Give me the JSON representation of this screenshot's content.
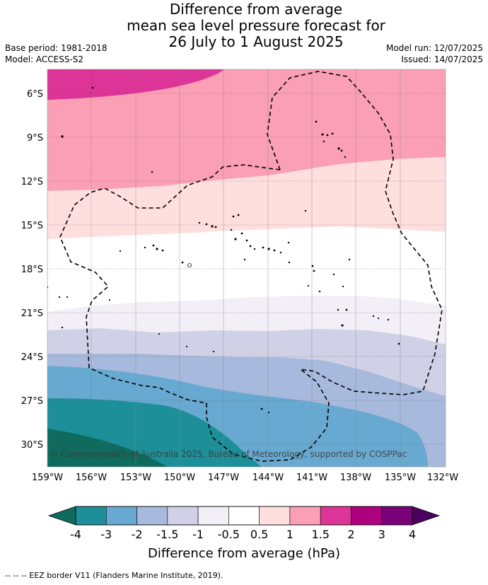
{
  "title": {
    "line1": "Difference from average",
    "line2": "mean sea level pressure forecast for",
    "line3": "26 July to 1 August 2025"
  },
  "meta_left": {
    "base_period": "Base period: 1981-2018",
    "model": "Model: ACCESS-S2"
  },
  "meta_right": {
    "model_run": "Model run: 12/07/2025",
    "issued": "Issued: 14/07/2025"
  },
  "map": {
    "lat_labels": [
      "6°S",
      "9°S",
      "12°S",
      "15°S",
      "18°S",
      "21°S",
      "24°S",
      "27°S",
      "30°S"
    ],
    "lon_labels": [
      "159°W",
      "156°W",
      "153°W",
      "150°W",
      "147°W",
      "144°W",
      "141°W",
      "138°W",
      "135°W",
      "132°W"
    ],
    "copyright": "© Commonwealth of Australia 2025, Bureau of Meteorology, supported by COSPPac"
  },
  "colorbar": {
    "tick_labels": [
      "-4",
      "-3",
      "-2",
      "-1.5",
      "-1",
      "-0.5",
      "0.5",
      "1",
      "1.5",
      "2",
      "3",
      "4"
    ],
    "low_extend_color": "#0f6b5e",
    "high_extend_color": "#4b0060",
    "colors": [
      "#1d8f99",
      "#67a9d0",
      "#a7b9dc",
      "#d0d1e6",
      "#f2eff6",
      "#ffffff",
      "#ffdede",
      "#fa9fb5",
      "#dd3497",
      "#ae017e",
      "#7a0177"
    ],
    "label": "Difference from average (hPa)"
  },
  "footer": "--  --  -- EEZ border V11 (Flanders Marine Institute, 2019)."
}
